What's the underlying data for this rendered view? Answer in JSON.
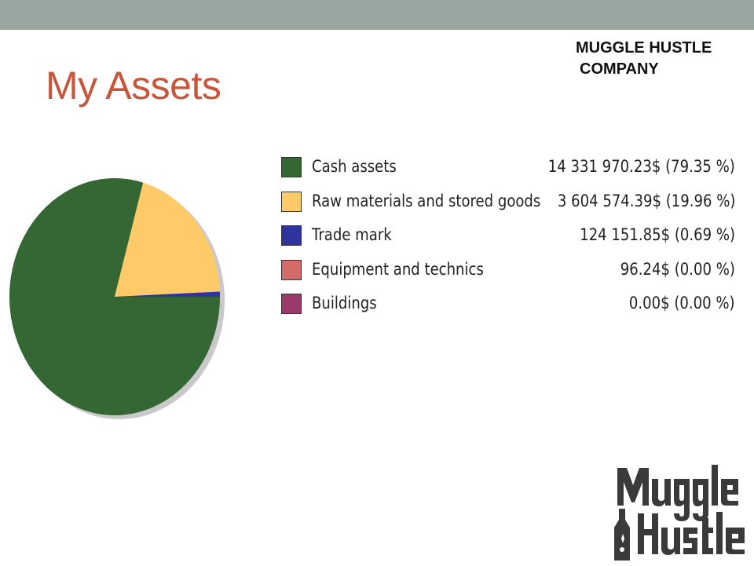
{
  "page": {
    "title": "My Assets",
    "company_line1": "MUGGLE HUSTLE",
    "company_line2": "COMPANY",
    "header_bar_color": "#9aa7a0",
    "title_color": "#c8563c"
  },
  "logo": {
    "line1": "Muggle",
    "line2": "Hustle",
    "icon": "bottle-icon"
  },
  "chart_data": {
    "type": "pie",
    "title": "",
    "legend_position": "right",
    "slices": [
      {
        "label": "Cash assets",
        "value": 14331970.23,
        "value_text": "14 331 970.23$",
        "percent": 79.35,
        "percent_text": "(79.35 %)",
        "color": "#346734"
      },
      {
        "label": "Raw materials and stored goods",
        "value": 3604574.39,
        "value_text": "3 604 574.39$",
        "percent": 19.96,
        "percent_text": "(19.96 %)",
        "color": "#ffcb69"
      },
      {
        "label": "Trade mark",
        "value": 124151.85,
        "value_text": "124 151.85$",
        "percent": 0.69,
        "percent_text": "(0.69 %)",
        "color": "#2f33a0"
      },
      {
        "label": "Equipment and technics",
        "value": 96.24,
        "value_text": "96.24$",
        "percent": 0.0,
        "percent_text": "(0.00 %)",
        "color": "#d46a6a"
      },
      {
        "label": "Buildings",
        "value": 0.0,
        "value_text": "0.00$",
        "percent": 0.0,
        "percent_text": "(0.00 %)",
        "color": "#9a3a6a"
      }
    ]
  }
}
